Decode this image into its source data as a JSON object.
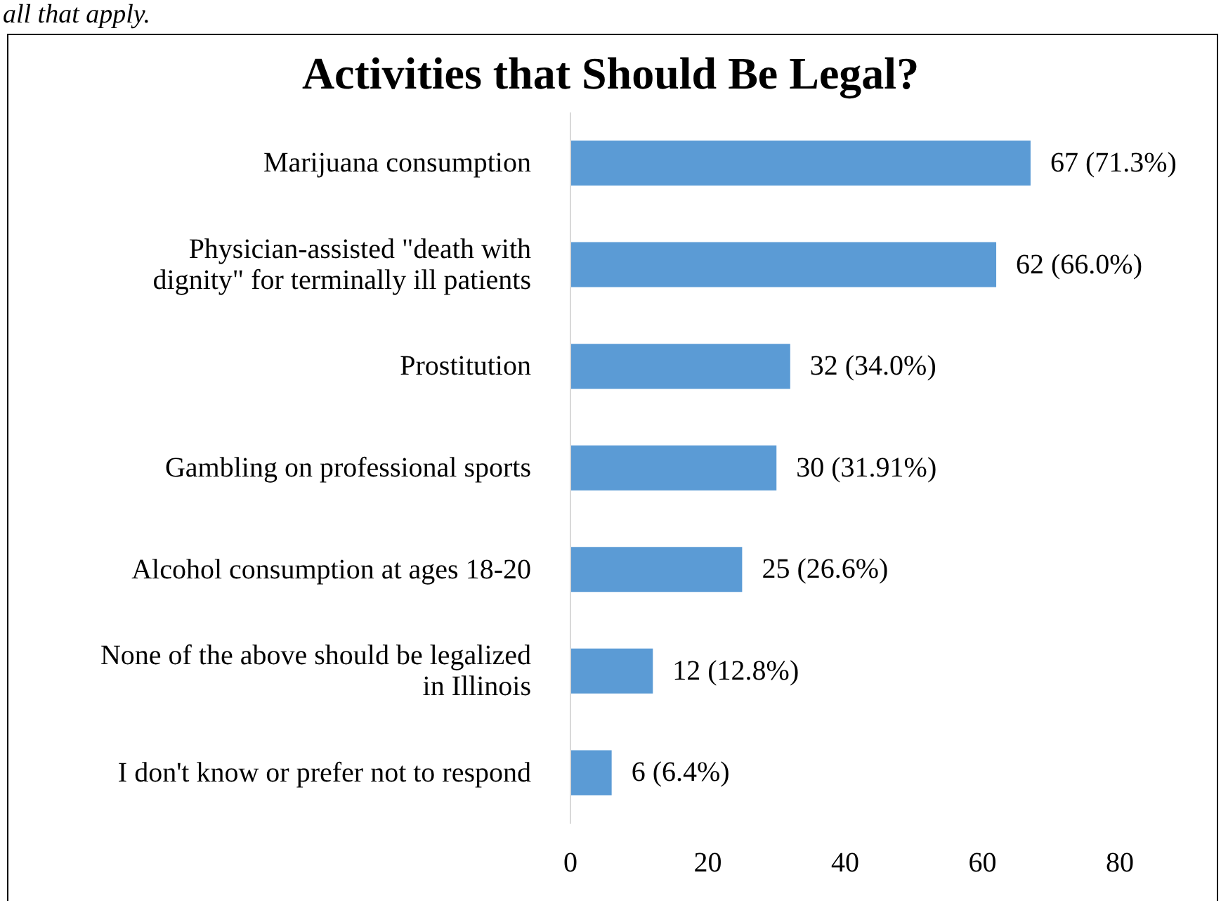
{
  "chart_data": {
    "type": "bar",
    "orientation": "horizontal",
    "title": "Activities that Should Be Legal?",
    "annotations": [
      "all that apply."
    ],
    "categories": [
      "Marijuana consumption",
      "Physician-assisted \"death with dignity\" for terminally ill patients",
      "Prostitution",
      "Gambling on professional sports",
      "Alcohol consumption at ages 18-20",
      "None of the above should be legalized in Illinois",
      "I don't know or prefer not to respond"
    ],
    "values": [
      67,
      62,
      32,
      30,
      25,
      12,
      6
    ],
    "value_labels": [
      "67 (71.3%)",
      "62 (66.0%)",
      "32 (34.0%)",
      "30 (31.91%)",
      "25 (26.6%)",
      "12 (12.8%)",
      "6 (6.4%)"
    ],
    "color": "#5b9bd5",
    "xlim": [
      0,
      80
    ],
    "xticks": [
      0,
      20,
      40,
      60,
      80
    ],
    "grid": false,
    "legend": false
  }
}
